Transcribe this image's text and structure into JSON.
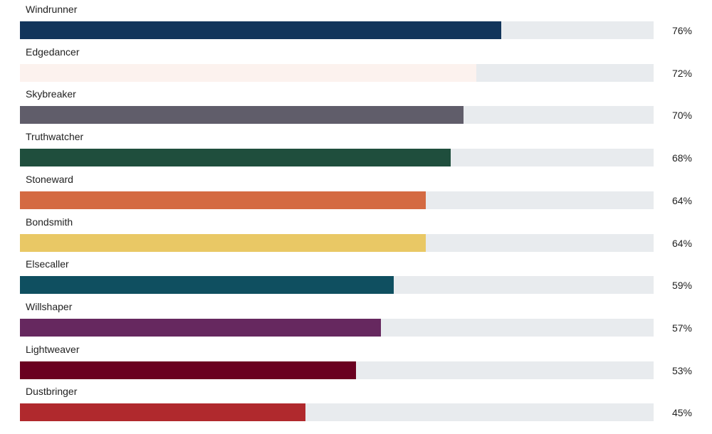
{
  "chart_data": {
    "type": "bar",
    "orientation": "horizontal",
    "categories": [
      "Windrunner",
      "Edgedancer",
      "Skybreaker",
      "Truthwatcher",
      "Stoneward",
      "Bondsmith",
      "Elsecaller",
      "Willshaper",
      "Lightweaver",
      "Dustbringer"
    ],
    "values": [
      76,
      72,
      70,
      68,
      64,
      64,
      59,
      57,
      53,
      45
    ],
    "value_labels": [
      "76%",
      "72%",
      "70%",
      "68%",
      "64%",
      "64%",
      "59%",
      "57%",
      "53%",
      "45%"
    ],
    "colors": [
      "#12355b",
      "#fcf2ee",
      "#605d6a",
      "#1f4e3d",
      "#d46a42",
      "#e9c865",
      "#0f4f60",
      "#66285f",
      "#6a0020",
      "#b0292d"
    ],
    "track_color": "#e8ebee",
    "xlim": [
      0,
      100
    ],
    "title": "",
    "xlabel": "",
    "ylabel": "",
    "grid": false,
    "legend": "none"
  }
}
